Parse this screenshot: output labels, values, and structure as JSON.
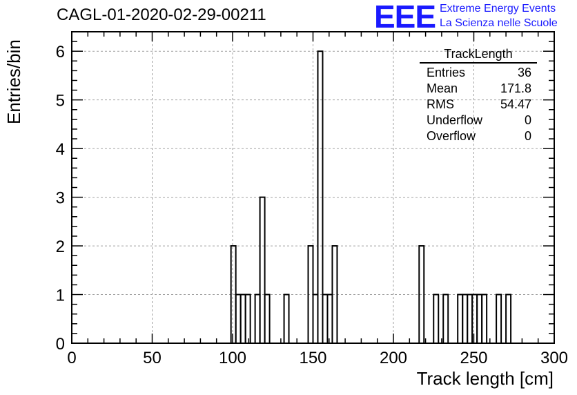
{
  "title": "CAGL-01-2020-02-29-00211",
  "logo": {
    "mark": "EEE",
    "line1": "Extreme Energy Events",
    "line2": "La Scienza nelle Scuole"
  },
  "stats": {
    "name": "TrackLength",
    "rows": [
      {
        "label": "Entries",
        "value": "36"
      },
      {
        "label": "Mean",
        "value": "171.8"
      },
      {
        "label": "RMS",
        "value": "54.47"
      },
      {
        "label": "Underflow",
        "value": "0"
      },
      {
        "label": "Overflow",
        "value": "0"
      }
    ]
  },
  "chart_data": {
    "type": "bar",
    "title": "CAGL-01-2020-02-29-00211",
    "xlabel": "Track length [cm]",
    "ylabel": "Entries/bin",
    "xlim": [
      0,
      300
    ],
    "ylim": [
      0,
      6.4
    ],
    "xticks": [
      "0",
      "50",
      "100",
      "150",
      "200",
      "250",
      "300"
    ],
    "yticks": [
      "0",
      "1",
      "2",
      "3",
      "4",
      "5",
      "6"
    ],
    "grid": true,
    "bin_width": 3,
    "bins": [
      {
        "x": 99,
        "y": 2
      },
      {
        "x": 102,
        "y": 1
      },
      {
        "x": 105,
        "y": 1
      },
      {
        "x": 108,
        "y": 1
      },
      {
        "x": 114,
        "y": 1
      },
      {
        "x": 117,
        "y": 3
      },
      {
        "x": 120,
        "y": 1
      },
      {
        "x": 132,
        "y": 1
      },
      {
        "x": 147,
        "y": 2
      },
      {
        "x": 150,
        "y": 1
      },
      {
        "x": 153,
        "y": 6
      },
      {
        "x": 156,
        "y": 1
      },
      {
        "x": 159,
        "y": 1
      },
      {
        "x": 162,
        "y": 2
      },
      {
        "x": 216,
        "y": 2
      },
      {
        "x": 225,
        "y": 1
      },
      {
        "x": 231,
        "y": 1
      },
      {
        "x": 240,
        "y": 1
      },
      {
        "x": 243,
        "y": 1
      },
      {
        "x": 246,
        "y": 1
      },
      {
        "x": 249,
        "y": 1
      },
      {
        "x": 252,
        "y": 1
      },
      {
        "x": 255,
        "y": 1
      },
      {
        "x": 264,
        "y": 1
      },
      {
        "x": 270,
        "y": 1
      }
    ]
  }
}
